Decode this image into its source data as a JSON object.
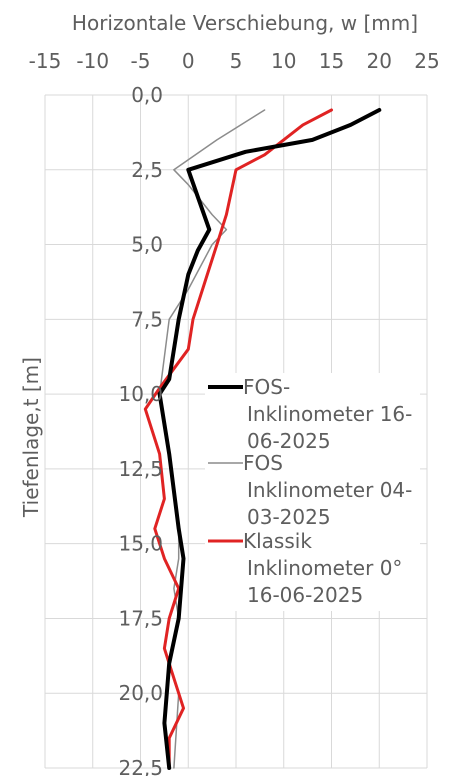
{
  "chart_data": {
    "type": "line",
    "orientation": "depth-profile",
    "xlabel": "Horizontale Verschiebung, w  [mm]",
    "ylabel": "Tiefenlage,t  [m]",
    "xlim": [
      -15,
      25
    ],
    "ylim": [
      0,
      22.5
    ],
    "y_inverted": true,
    "x_axis_position": "top",
    "x_ticks": [
      "-15",
      "-10",
      "-5",
      "0",
      "5",
      "10",
      "15",
      "20",
      "25"
    ],
    "y_ticks": [
      "0,0",
      "2,5",
      "5,0",
      "7,5",
      "10,0",
      "12,5",
      "15,0",
      "17,5",
      "20,0",
      "22,5"
    ],
    "grid": true,
    "legend_position": "right-middle",
    "series": [
      {
        "name": "FOS-Inklinometer 16-06-2025",
        "legend_lines": [
          "FOS-",
          "Inklinometer 16-",
          "06-2025"
        ],
        "color": "#000000",
        "width": 4,
        "points": [
          [
            20,
            0.5
          ],
          [
            17,
            1.0
          ],
          [
            13,
            1.5
          ],
          [
            6,
            1.9
          ],
          [
            0,
            2.5
          ],
          [
            2.2,
            4.5
          ],
          [
            1.0,
            5.2
          ],
          [
            0,
            6.0
          ],
          [
            -1,
            7.5
          ],
          [
            -2,
            9.5
          ],
          [
            -3,
            10.0
          ],
          [
            -2,
            12.0
          ],
          [
            -1,
            14.5
          ],
          [
            -0.5,
            15.5
          ],
          [
            -1,
            17.5
          ],
          [
            -2,
            19.0
          ],
          [
            -2.5,
            21.0
          ],
          [
            -2,
            22.5
          ]
        ]
      },
      {
        "name": "FOS Inklinometer 04-03-2025",
        "legend_lines": [
          "FOS",
          "Inklinometer 04-",
          "03-2025"
        ],
        "color": "#8c8c8c",
        "width": 1.5,
        "points": [
          [
            8,
            0.5
          ],
          [
            3,
            1.5
          ],
          [
            -1.5,
            2.5
          ],
          [
            0,
            3.0
          ],
          [
            2.5,
            4.0
          ],
          [
            4,
            4.5
          ],
          [
            2.5,
            5.0
          ],
          [
            0,
            6.5
          ],
          [
            -2,
            7.5
          ],
          [
            -3,
            10.0
          ],
          [
            -2,
            12.0
          ],
          [
            -1,
            14.5
          ],
          [
            -1,
            15.5
          ],
          [
            -1.5,
            16.5
          ],
          [
            -1,
            17.5
          ],
          [
            -2,
            19.0
          ],
          [
            -1,
            20.0
          ],
          [
            -1.5,
            22.5
          ]
        ]
      },
      {
        "name": "Klassik Inklinometer 0° 16-06-2025",
        "legend_lines": [
          "Klassik",
          "Inklinometer 0°",
          "16-06-2025"
        ],
        "color": "#e02323",
        "width": 3,
        "points": [
          [
            15,
            0.5
          ],
          [
            12,
            1.0
          ],
          [
            8,
            2.0
          ],
          [
            5,
            2.5
          ],
          [
            4,
            4.0
          ],
          [
            3,
            5.0
          ],
          [
            2,
            6.0
          ],
          [
            0.5,
            7.5
          ],
          [
            0,
            8.5
          ],
          [
            -3,
            9.8
          ],
          [
            -4.5,
            10.5
          ],
          [
            -3,
            12.0
          ],
          [
            -2.5,
            13.5
          ],
          [
            -3.5,
            14.5
          ],
          [
            -2.5,
            15.5
          ],
          [
            -1,
            16.5
          ],
          [
            -2,
            17.5
          ],
          [
            -2.5,
            18.5
          ],
          [
            -1.5,
            19.5
          ],
          [
            -0.5,
            20.5
          ],
          [
            -2,
            21.5
          ],
          [
            -2,
            22.5
          ]
        ]
      }
    ]
  }
}
